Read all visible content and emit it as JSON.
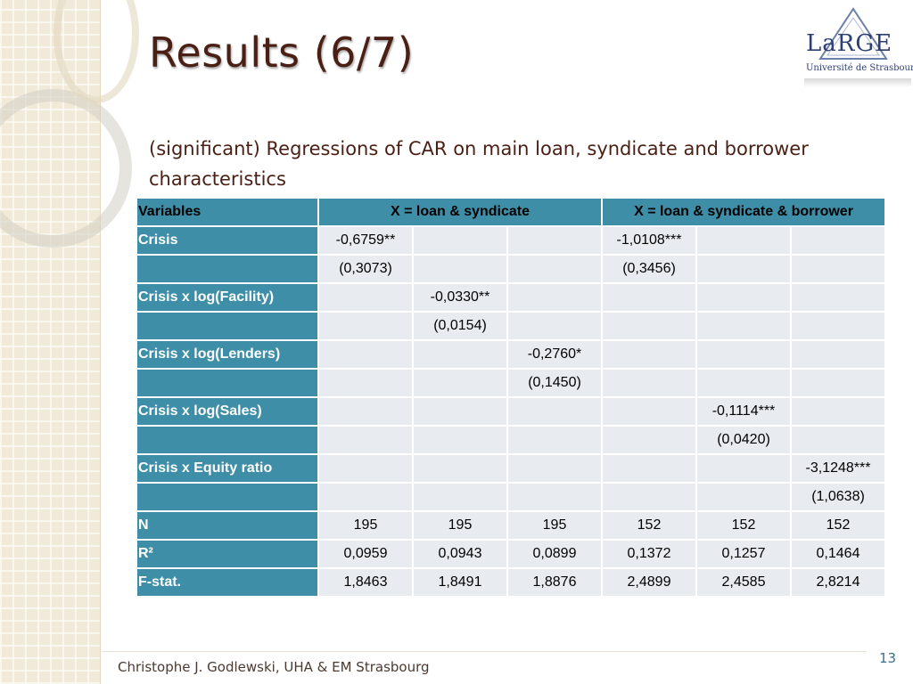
{
  "slide": {
    "title": "Results (6/7)",
    "subtitle": "(significant) Regressions of CAR on main loan, syndicate and borrower characteristics",
    "footer": "Christophe J. Godlewski, UHA & EM Strasbourg",
    "page_number": "13"
  },
  "logo": {
    "name": "LaRGE",
    "sub": "Université de Strasbourg"
  },
  "table": {
    "header": {
      "variables": "Variables",
      "group1": "X = loan & syndicate",
      "group2": "X = loan & syndicate & borrower"
    },
    "rows": [
      {
        "label": "Crisis",
        "cells": [
          "-0,6759**",
          "",
          "",
          "-1,0108***",
          "",
          ""
        ]
      },
      {
        "label": "",
        "cells": [
          "(0,3073)",
          "",
          "",
          "(0,3456)",
          "",
          ""
        ]
      },
      {
        "label": "Crisis x log(Facility)",
        "cells": [
          "",
          "-0,0330**",
          "",
          "",
          "",
          ""
        ]
      },
      {
        "label": "",
        "cells": [
          "",
          "(0,0154)",
          "",
          "",
          "",
          ""
        ]
      },
      {
        "label": "Crisis x log(Lenders)",
        "cells": [
          "",
          "",
          "-0,2760*",
          "",
          "",
          ""
        ]
      },
      {
        "label": "",
        "cells": [
          "",
          "",
          "(0,1450)",
          "",
          "",
          ""
        ]
      },
      {
        "label": "Crisis x log(Sales)",
        "cells": [
          "",
          "",
          "",
          "",
          "-0,1114***",
          ""
        ]
      },
      {
        "label": "",
        "cells": [
          "",
          "",
          "",
          "",
          "(0,0420)",
          ""
        ]
      },
      {
        "label": "Crisis x Equity ratio",
        "cells": [
          "",
          "",
          "",
          "",
          "",
          "-3,1248***"
        ]
      },
      {
        "label": "",
        "cells": [
          "",
          "",
          "",
          "",
          "",
          "(1,0638)"
        ]
      },
      {
        "label": "N",
        "cells": [
          "195",
          "195",
          "195",
          "152",
          "152",
          "152"
        ]
      },
      {
        "label": "R²",
        "cells": [
          "0,0959",
          "0,0943",
          "0,0899",
          "0,1372",
          "0,1257",
          "0,1464"
        ]
      },
      {
        "label": "F-stat.",
        "cells": [
          "1,8463",
          "1,8491",
          "1,8876",
          "2,4899",
          "2,4585",
          "2,8214"
        ]
      }
    ]
  },
  "colors": {
    "header_bg": "#3e8ea8",
    "cell_bg": "#e8ecf1",
    "title": "#4a1f14"
  }
}
